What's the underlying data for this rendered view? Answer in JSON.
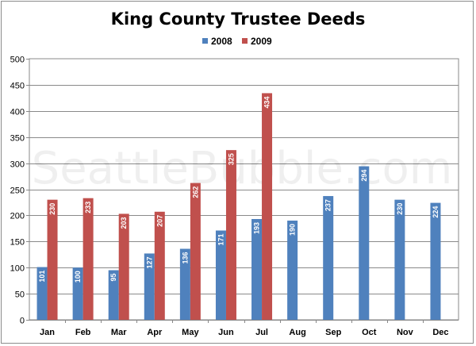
{
  "chart_data": {
    "type": "bar",
    "title": "King County Trustee Deeds",
    "watermark": "SeattleBubble.com",
    "categories": [
      "Jan",
      "Feb",
      "Mar",
      "Apr",
      "May",
      "Jun",
      "Jul",
      "Aug",
      "Sep",
      "Oct",
      "Nov",
      "Dec"
    ],
    "series": [
      {
        "name": "2008",
        "color": "#4f81bd",
        "values": [
          101,
          100,
          95,
          127,
          136,
          171,
          193,
          190,
          237,
          294,
          230,
          224
        ]
      },
      {
        "name": "2009",
        "color": "#c0504d",
        "values": [
          230,
          233,
          203,
          207,
          262,
          325,
          434,
          null,
          null,
          null,
          null,
          null
        ]
      }
    ],
    "ylim": [
      0,
      500
    ],
    "yticks": [
      0,
      50,
      100,
      150,
      200,
      250,
      300,
      350,
      400,
      450,
      500
    ],
    "grid": true,
    "legend": "top-center",
    "data_labels": true
  }
}
